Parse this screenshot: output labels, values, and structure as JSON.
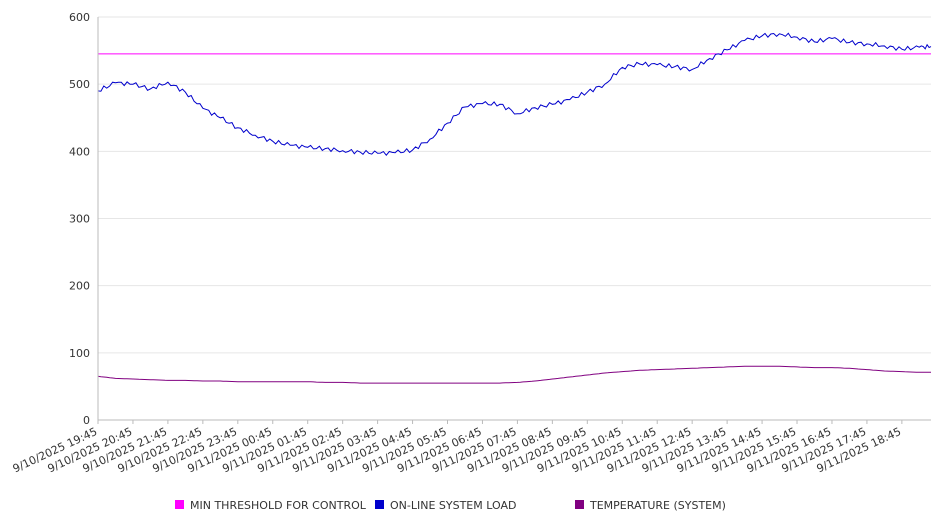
{
  "chart_data": {
    "type": "line",
    "title": "",
    "xlabel": "",
    "ylabel": "",
    "ylim": [
      0,
      600
    ],
    "y_ticks": [
      0,
      100,
      200,
      300,
      400,
      500,
      600
    ],
    "grid": true,
    "legend_position": "bottom",
    "x_tick_labels": [
      "9/10/2025 19:45",
      "9/10/2025 20:45",
      "9/10/2025 21:45",
      "9/10/2025 22:45",
      "9/10/2025 23:45",
      "9/11/2025 00:45",
      "9/11/2025 01:45",
      "9/11/2025 02:45",
      "9/11/2025 03:45",
      "9/11/2025 04:45",
      "9/11/2025 05:45",
      "9/11/2025 06:45",
      "9/11/2025 07:45",
      "9/11/2025 08:45",
      "9/11/2025 09:45",
      "9/11/2025 10:45",
      "9/11/2025 11:45",
      "9/11/2025 12:45",
      "9/11/2025 13:45",
      "9/11/2025 14:45",
      "9/11/2025 15:45",
      "9/11/2025 16:45",
      "9/11/2025 17:45",
      "9/11/2025 18:45"
    ],
    "x": [
      "9/10/2025 19:45",
      "9/10/2025 20:15",
      "9/10/2025 20:45",
      "9/10/2025 21:15",
      "9/10/2025 21:45",
      "9/10/2025 22:15",
      "9/10/2025 22:45",
      "9/10/2025 23:15",
      "9/10/2025 23:45",
      "9/11/2025 00:15",
      "9/11/2025 00:45",
      "9/11/2025 01:15",
      "9/11/2025 01:45",
      "9/11/2025 02:15",
      "9/11/2025 02:45",
      "9/11/2025 03:15",
      "9/11/2025 03:45",
      "9/11/2025 04:15",
      "9/11/2025 04:45",
      "9/11/2025 05:15",
      "9/11/2025 05:45",
      "9/11/2025 06:15",
      "9/11/2025 06:45",
      "9/11/2025 07:15",
      "9/11/2025 07:45",
      "9/11/2025 08:15",
      "9/11/2025 08:45",
      "9/11/2025 09:15",
      "9/11/2025 09:45",
      "9/11/2025 10:15",
      "9/11/2025 10:45",
      "9/11/2025 11:15",
      "9/11/2025 11:45",
      "9/11/2025 12:15",
      "9/11/2025 12:45",
      "9/11/2025 13:15",
      "9/11/2025 13:45",
      "9/11/2025 14:15",
      "9/11/2025 14:45",
      "9/11/2025 15:15",
      "9/11/2025 15:45",
      "9/11/2025 16:15",
      "9/11/2025 16:45",
      "9/11/2025 17:15",
      "9/11/2025 17:45",
      "9/11/2025 18:15",
      "9/11/2025 18:45",
      "9/11/2025 19:15",
      "9/11/2025 19:35"
    ],
    "series": [
      {
        "name": "MIN THRESHOLD FOR CONTROL",
        "color": "#ff00ff",
        "values": [
          545,
          545,
          545,
          545,
          545,
          545,
          545,
          545,
          545,
          545,
          545,
          545,
          545,
          545,
          545,
          545,
          545,
          545,
          545,
          545,
          545,
          545,
          545,
          545,
          545,
          545,
          545,
          545,
          545,
          545,
          545,
          545,
          545,
          545,
          545,
          545,
          545,
          545,
          545,
          545,
          545,
          545,
          545,
          545,
          545,
          545,
          545,
          545,
          545
        ]
      },
      {
        "name": "ON-LINE SYSTEM LOAD",
        "color": "#0000cc",
        "values": [
          490,
          502,
          500,
          493,
          503,
          488,
          464,
          450,
          435,
          424,
          415,
          409,
          406,
          404,
          401,
          399,
          397,
          398,
          402,
          418,
          442,
          466,
          471,
          470,
          456,
          465,
          470,
          477,
          488,
          500,
          525,
          530,
          529,
          526,
          522,
          538,
          551,
          565,
          572,
          575,
          570,
          563,
          568,
          562,
          560,
          557,
          552,
          555,
          556
        ]
      },
      {
        "name": "TEMPERATURE (SYSTEM)",
        "color": "#800080",
        "values": [
          65,
          62,
          61,
          60,
          59,
          59,
          58,
          58,
          57,
          57,
          57,
          57,
          57,
          56,
          56,
          55,
          55,
          55,
          55,
          55,
          55,
          55,
          55,
          55,
          56,
          58,
          61,
          64,
          67,
          70,
          72,
          74,
          75,
          76,
          77,
          78,
          79,
          80,
          80,
          80,
          79,
          78,
          78,
          77,
          75,
          73,
          72,
          71,
          71
        ]
      }
    ]
  }
}
